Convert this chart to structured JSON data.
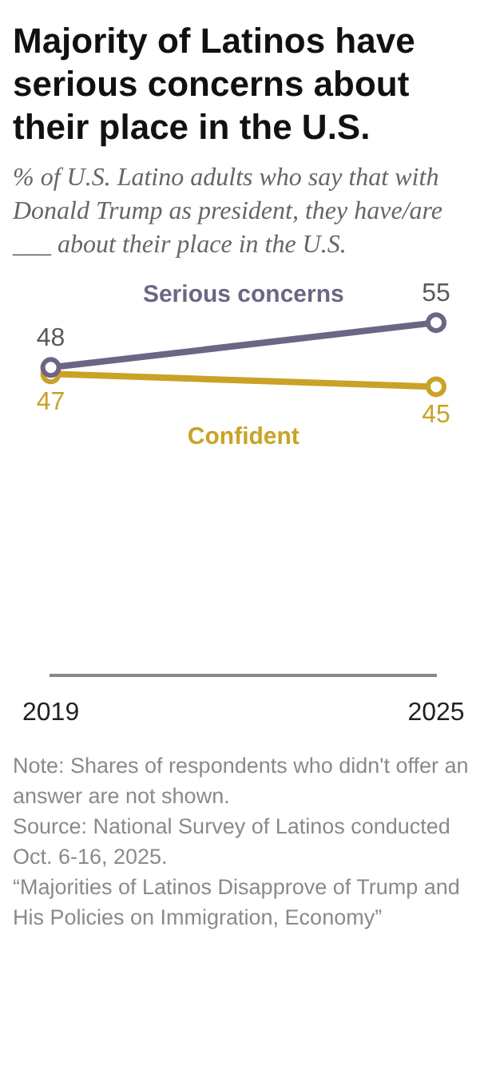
{
  "chart_data": {
    "type": "line",
    "title": "Majority of Latinos have serious concerns about their place in the U.S.",
    "subtitle": "% of U.S. Latino adults who say that with Donald Trump as president, they have/are ___ about their place in the U.S.",
    "categories": [
      "2019",
      "2025"
    ],
    "series": [
      {
        "name": "Serious concerns",
        "color": "#6e6584",
        "values": [
          48,
          55
        ]
      },
      {
        "name": "Confident",
        "color": "#c9a227",
        "values": [
          47,
          45
        ]
      }
    ],
    "data_labels": true,
    "marker": "circle",
    "grid": false,
    "legend": false,
    "tick_labels": "x",
    "annotations": [
      "Note: Shares of respondents who didn't offer an answer are not shown.",
      "Source: National Survey of Latinos conducted Oct. 6-16, 2025.",
      "“Majorities of Latinos Disapprove of Trump and His Policies on Immigration, Economy”"
    ]
  }
}
